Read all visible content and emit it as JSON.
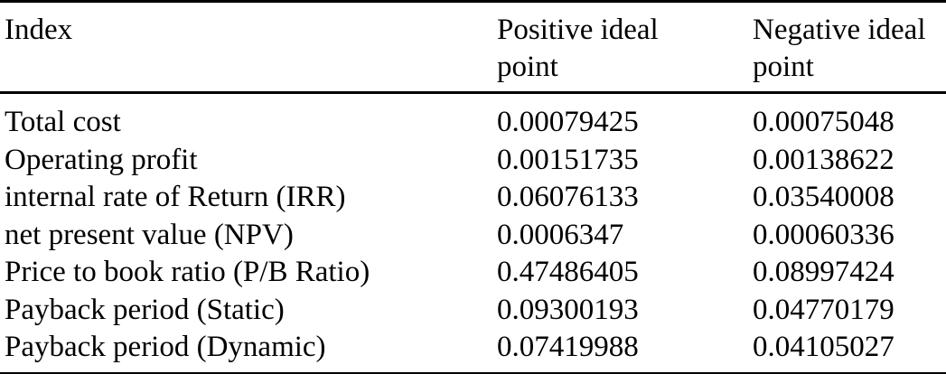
{
  "table": {
    "columns": [
      {
        "key": "index",
        "label": "Index"
      },
      {
        "key": "positive_ideal_point",
        "label": "Positive ideal point"
      },
      {
        "key": "negative_ideal_point",
        "label": "Negative ideal point"
      }
    ],
    "rows": [
      {
        "index": "Total cost",
        "positive_ideal_point": "0.00079425",
        "negative_ideal_point": "0.00075048"
      },
      {
        "index": "Operating profit",
        "positive_ideal_point": "0.00151735",
        "negative_ideal_point": "0.00138622"
      },
      {
        "index": "internal rate of Return (IRR)",
        "positive_ideal_point": "0.06076133",
        "negative_ideal_point": "0.03540008"
      },
      {
        "index": "net present value (NPV)",
        "positive_ideal_point": "0.0006347",
        "negative_ideal_point": "0.00060336"
      },
      {
        "index": "Price to book ratio (P/B Ratio)",
        "positive_ideal_point": "0.47486405",
        "negative_ideal_point": "0.08997424"
      },
      {
        "index": "Payback period (Static)",
        "positive_ideal_point": "0.09300193",
        "negative_ideal_point": "0.04770179"
      },
      {
        "index": "Payback period (Dynamic)",
        "positive_ideal_point": "0.07419988",
        "negative_ideal_point": "0.04105027"
      }
    ],
    "colors": {
      "text": "#000000",
      "background": "#ffffff",
      "rule": "#000000"
    }
  }
}
